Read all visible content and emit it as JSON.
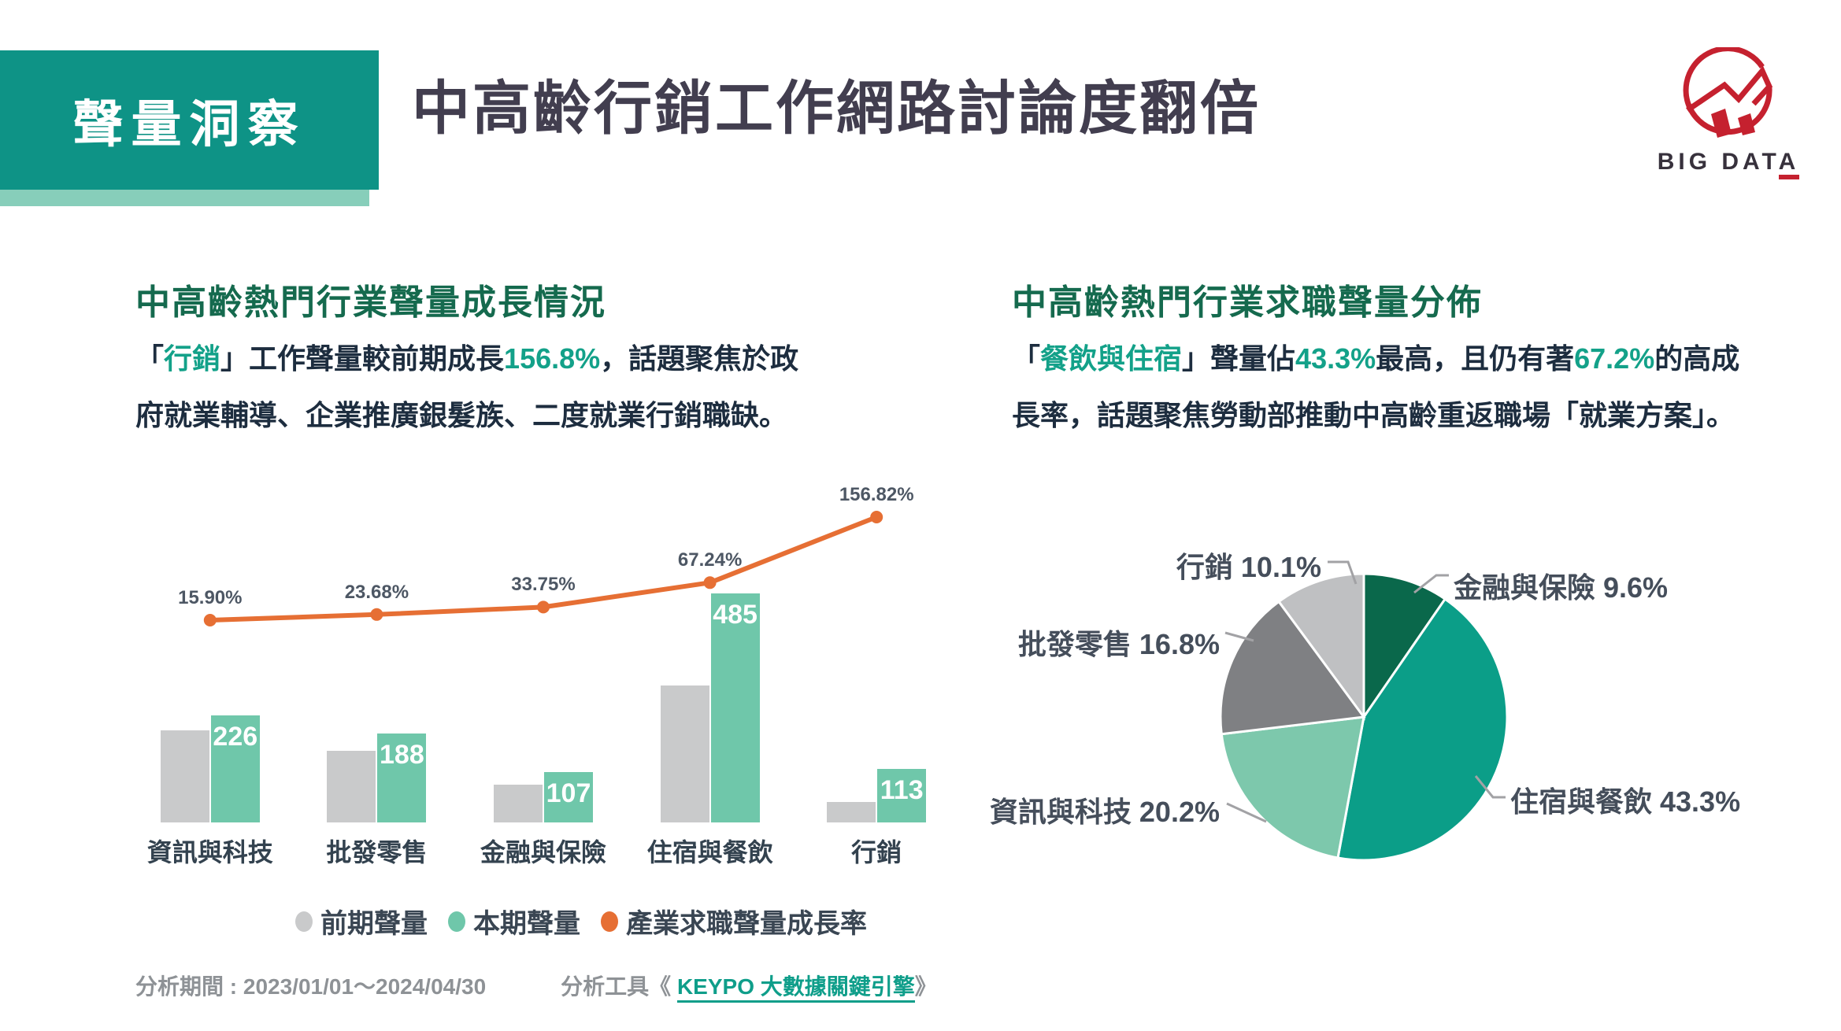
{
  "header": {
    "badge": "聲量洞察",
    "title": "中高齡行銷工作網路討論度翻倍",
    "logo_brand_main": "BIG DAT",
    "logo_brand_accent": "A"
  },
  "sections": {
    "left": {
      "heading": "中高齡熱門行業聲量成長情況",
      "paragraph_lines": [
        [
          {
            "t": "「"
          },
          {
            "t": "行銷",
            "hl": true
          },
          {
            "t": "」工作聲量較前期成長"
          },
          {
            "t": "156.8%",
            "hl": true
          },
          {
            "t": "，話題聚焦於政"
          }
        ],
        [
          {
            "t": "府就業輔導、企業推廣銀髮族、二度就業行銷職缺。"
          }
        ]
      ]
    },
    "right": {
      "heading": "中高齡熱門行業求職聲量分佈",
      "paragraph_lines": [
        [
          {
            "t": "「"
          },
          {
            "t": "餐飲與住宿",
            "hl": true
          },
          {
            "t": "」聲量佔"
          },
          {
            "t": "43.3%",
            "hl": true
          },
          {
            "t": "最高，且仍有著"
          },
          {
            "t": "67.2%",
            "hl": true
          },
          {
            "t": "的高成"
          }
        ],
        [
          {
            "t": "長率，話題聚焦勞動部推動中高齡重返職場「就業方案」。"
          }
        ]
      ]
    }
  },
  "chart_data": [
    {
      "type": "bar-line-combo",
      "categories": [
        "資訊與科技",
        "批發零售",
        "金融與保險",
        "住宿與餐飲",
        "行銷"
      ],
      "series": [
        {
          "name": "本期聲量",
          "type": "bar",
          "color": "#6fc7aa",
          "values": [
            226,
            188,
            107,
            485,
            113
          ]
        },
        {
          "name": "前期聲量",
          "type": "bar",
          "color": "#c9cacb",
          "values_note": "not labeled in chart; bars drawn from growth rate: previous = current / (1 + rate)"
        },
        {
          "name": "產業求職聲量成長率",
          "type": "line",
          "color": "#e66f34",
          "values_pct": [
            15.9,
            23.68,
            33.75,
            67.24,
            156.82
          ],
          "point_labels": [
            "15.90%",
            "23.68%",
            "33.75%",
            "67.24%",
            "156.82%"
          ]
        }
      ],
      "bar_value_labels": [
        "226",
        "188",
        "107",
        "485",
        "113"
      ],
      "legend": [
        {
          "label": "前期聲量",
          "color": "#c9cacb"
        },
        {
          "label": "本期聲量",
          "color": "#6fc7aa"
        },
        {
          "label": "產業求職聲量成長率",
          "color": "#e66f34"
        }
      ],
      "grid": false,
      "legend_position": "bottom-center"
    },
    {
      "type": "pie",
      "labels": [
        "金融與保險",
        "住宿與餐飲",
        "資訊與科技",
        "批發零售",
        "行銷"
      ],
      "values": [
        9.6,
        43.3,
        20.2,
        16.8,
        10.1
      ],
      "display_labels": [
        "金融與保險 9.6%",
        "住宿與餐飲 43.3%",
        "資訊與科技 20.2%",
        "批發零售 16.8%",
        "行銷 10.1%"
      ],
      "colors": [
        "#0a684b",
        "#0b9e88",
        "#7dc8ac",
        "#7f8083",
        "#bfc0c2"
      ],
      "start_angle_deg": 0,
      "clockwise": true,
      "slice_border_color": "#ffffff"
    }
  ],
  "footer": {
    "period": "分析期間 : 2023/01/01～2024/04/30",
    "tool_prefix": "分析工具《 ",
    "tool_link": "KEYPO 大數據關鍵引擎",
    "tool_suffix": "》"
  },
  "colors": {
    "banner_bg": "#0e9386",
    "banner_shadow": "#87ceba",
    "title_text": "#423e4f",
    "heading_green": "#156a4e",
    "body_text": "#1d2d3f",
    "teal_accent": "#13a189",
    "bar_current": "#6fc7aa",
    "bar_previous": "#c9cacb",
    "line_orange": "#e66f34",
    "logo_red": "#c5212f",
    "footer_gray": "#8e9296",
    "link_teal": "#0f9e8a"
  }
}
